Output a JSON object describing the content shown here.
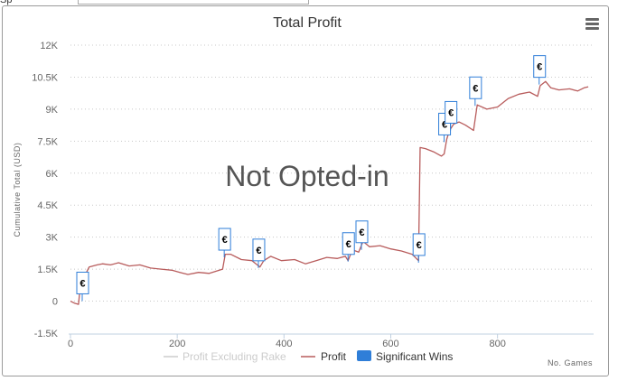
{
  "page": {
    "top_text": "Sp"
  },
  "chart_data": {
    "type": "line",
    "title": "Total Profit",
    "xlabel": "No. Games",
    "ylabel": "Cumulative Total (USD)",
    "watermark": "Not Opted-in",
    "xlim": [
      0,
      980
    ],
    "ylim": [
      -1500,
      12000
    ],
    "x_ticks": [
      0,
      200,
      400,
      600,
      800
    ],
    "y_ticks": [
      -1500,
      0,
      1500,
      3000,
      4500,
      6000,
      7500,
      9000,
      10500,
      12000
    ],
    "y_tick_labels": [
      "-1.5K",
      "0",
      "1.5K",
      "3K",
      "4.5K",
      "6K",
      "7.5K",
      "9K",
      "10.5K",
      "12K"
    ],
    "grid": "horizontal dotted",
    "legend": {
      "placement": "bottom",
      "items": [
        {
          "label": "Profit Excluding Rake",
          "color": "#cccccc",
          "kind": "line",
          "enabled": false
        },
        {
          "label": "Profit",
          "color": "#b85c5c",
          "kind": "line",
          "enabled": true
        },
        {
          "label": "Significant Wins",
          "color": "#2f7ed8",
          "kind": "box",
          "enabled": true
        }
      ]
    },
    "series": [
      {
        "name": "Profit",
        "color": "#b85c5c",
        "points": [
          [
            0,
            0
          ],
          [
            8,
            -100
          ],
          [
            15,
            -150
          ],
          [
            18,
            600
          ],
          [
            22,
            900
          ],
          [
            25,
            1100
          ],
          [
            35,
            1600
          ],
          [
            50,
            1700
          ],
          [
            60,
            1750
          ],
          [
            75,
            1700
          ],
          [
            90,
            1800
          ],
          [
            110,
            1650
          ],
          [
            130,
            1700
          ],
          [
            150,
            1550
          ],
          [
            170,
            1500
          ],
          [
            190,
            1450
          ],
          [
            205,
            1350
          ],
          [
            220,
            1250
          ],
          [
            240,
            1350
          ],
          [
            260,
            1300
          ],
          [
            285,
            1500
          ],
          [
            290,
            2200
          ],
          [
            300,
            2200
          ],
          [
            320,
            1950
          ],
          [
            340,
            1900
          ],
          [
            355,
            1600
          ],
          [
            362,
            1900
          ],
          [
            375,
            2100
          ],
          [
            395,
            1900
          ],
          [
            420,
            1950
          ],
          [
            440,
            1750
          ],
          [
            460,
            1900
          ],
          [
            480,
            2050
          ],
          [
            500,
            2000
          ],
          [
            515,
            2100
          ],
          [
            520,
            1900
          ],
          [
            528,
            2400
          ],
          [
            540,
            2300
          ],
          [
            548,
            2800
          ],
          [
            560,
            2550
          ],
          [
            580,
            2600
          ],
          [
            600,
            2450
          ],
          [
            620,
            2350
          ],
          [
            640,
            2200
          ],
          [
            648,
            2000
          ],
          [
            652,
            1900
          ],
          [
            655,
            7200
          ],
          [
            665,
            7150
          ],
          [
            680,
            7000
          ],
          [
            695,
            6800
          ],
          [
            700,
            6900
          ],
          [
            705,
            7600
          ],
          [
            710,
            8000
          ],
          [
            718,
            8300
          ],
          [
            728,
            8400
          ],
          [
            740,
            8250
          ],
          [
            755,
            8000
          ],
          [
            762,
            9200
          ],
          [
            780,
            9000
          ],
          [
            800,
            9100
          ],
          [
            820,
            9500
          ],
          [
            840,
            9700
          ],
          [
            860,
            9800
          ],
          [
            875,
            9600
          ],
          [
            880,
            10100
          ],
          [
            890,
            10300
          ],
          [
            900,
            10000
          ],
          [
            915,
            9900
          ],
          [
            935,
            9950
          ],
          [
            950,
            9850
          ],
          [
            962,
            10000
          ],
          [
            970,
            10050
          ]
        ]
      }
    ],
    "significant_wins": [
      {
        "x": 22,
        "y": 850,
        "label": "€"
      },
      {
        "x": 288,
        "y": 2900,
        "label": "€"
      },
      {
        "x": 352,
        "y": 2400,
        "label": "€"
      },
      {
        "x": 520,
        "y": 2700,
        "label": "€"
      },
      {
        "x": 545,
        "y": 3250,
        "label": "€"
      },
      {
        "x": 652,
        "y": 2650,
        "label": "€"
      },
      {
        "x": 700,
        "y": 8300,
        "label": "€"
      },
      {
        "x": 712,
        "y": 8850,
        "label": "€"
      },
      {
        "x": 758,
        "y": 10000,
        "label": "€"
      },
      {
        "x": 878,
        "y": 11000,
        "label": "€"
      }
    ]
  }
}
